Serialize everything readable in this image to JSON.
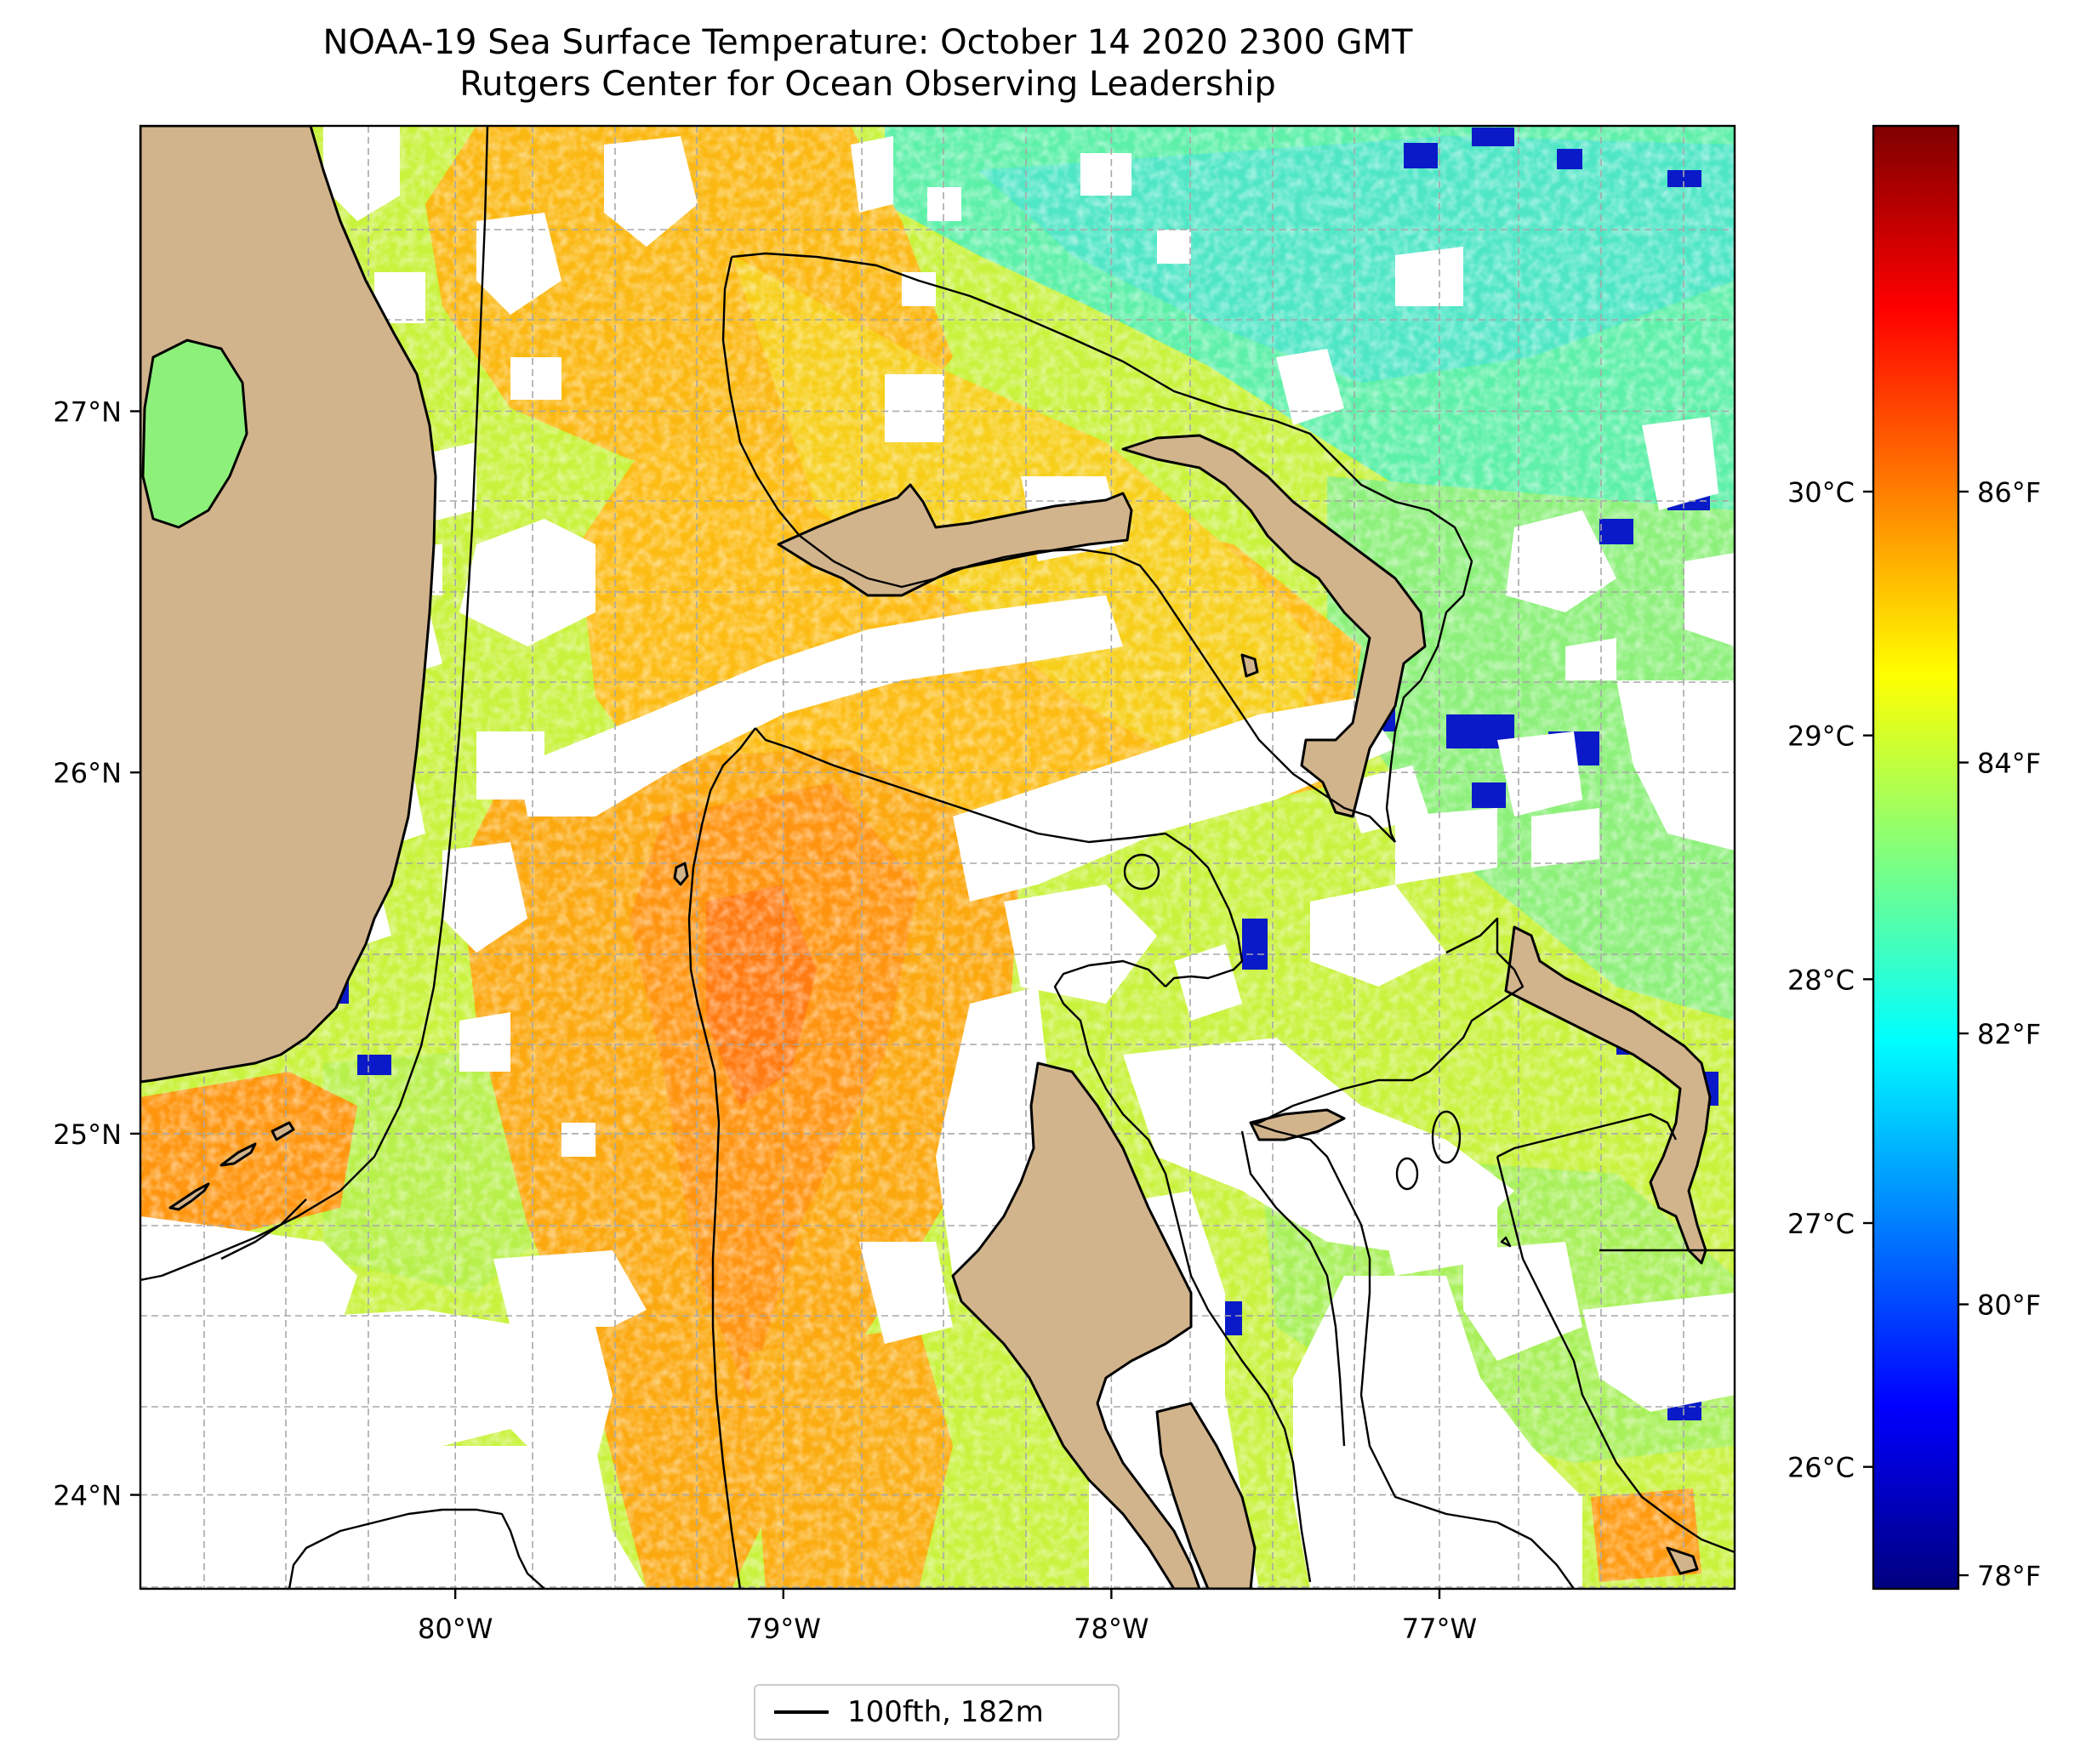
{
  "title": {
    "line1": "NOAA-19 Sea Surface Temperature: October 14 2020 2300 GMT",
    "line2": "Rutgers Center for Ocean Observing Leadership"
  },
  "map": {
    "lon_range": [
      -80.96,
      -76.1
    ],
    "lat_range": [
      23.74,
      27.79
    ],
    "lon_ticks": [
      {
        "value": -80,
        "label": "80°W"
      },
      {
        "value": -79,
        "label": "79°W"
      },
      {
        "value": -78,
        "label": "78°W"
      },
      {
        "value": -77,
        "label": "77°W"
      }
    ],
    "lat_ticks": [
      {
        "value": 24,
        "label": "24°N"
      },
      {
        "value": 25,
        "label": "25°N"
      },
      {
        "value": 26,
        "label": "26°N"
      },
      {
        "value": 27,
        "label": "27°N"
      }
    ],
    "gridlines": "dashed",
    "land_color": "#d2b48c",
    "no_data_color": "#ffffff",
    "legend": {
      "placement": "bottom-center",
      "entries": [
        {
          "label": "100fth, 182m",
          "color": "#000000",
          "style": "solid-line"
        }
      ]
    }
  },
  "colorbar": {
    "colormap": "jet",
    "colors": [
      "#00007f",
      "#0000ff",
      "#007fff",
      "#00ffff",
      "#7fff7f",
      "#ffff00",
      "#ff7f00",
      "#ff0000",
      "#7f0000"
    ],
    "fahrenheit_range": [
      77.9,
      88.7
    ],
    "celsius_ticks": [
      {
        "value": 26,
        "label": "26°C"
      },
      {
        "value": 27,
        "label": "27°C"
      },
      {
        "value": 28,
        "label": "28°C"
      },
      {
        "value": 29,
        "label": "29°C"
      },
      {
        "value": 30,
        "label": "30°C"
      }
    ],
    "fahrenheit_ticks": [
      {
        "value": 78,
        "label": "78°F"
      },
      {
        "value": 80,
        "label": "80°F"
      },
      {
        "value": 82,
        "label": "82°F"
      },
      {
        "value": 84,
        "label": "84°F"
      },
      {
        "value": 86,
        "label": "86°F"
      }
    ]
  }
}
